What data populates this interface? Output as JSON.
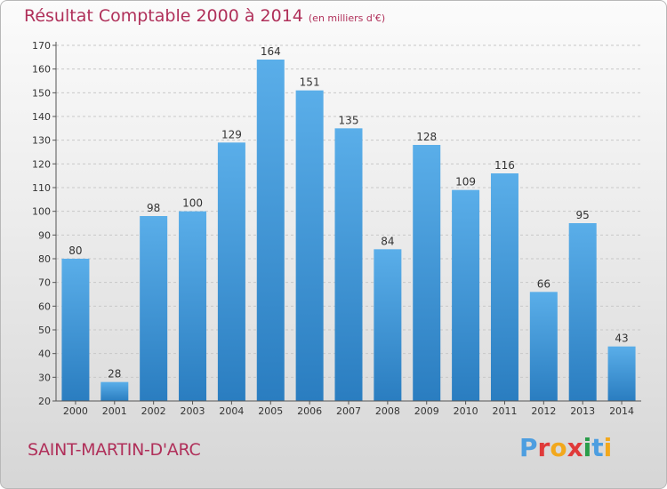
{
  "header": {
    "title": "Résultat Comptable 2000 à 2014",
    "subtitle": "(en milliers d'€)"
  },
  "footer": {
    "commune": "SAINT-MARTIN-D'ARC",
    "logo": "Proxiti"
  },
  "colors": {
    "bar_top": "#5aaee9",
    "bar_bottom": "#2a7dc0",
    "title": "#b0305a",
    "logo_letters": [
      "#4d9ee0",
      "#e03a3a",
      "#f2a81d",
      "#e03a3a",
      "#2a9d4a",
      "#4d9ee0",
      "#f2a81d"
    ]
  },
  "chart_data": {
    "type": "bar",
    "title": "Résultat Comptable 2000 à 2014",
    "subtitle": "(en milliers d'€)",
    "categories": [
      "2000",
      "2001",
      "2002",
      "2003",
      "2004",
      "2005",
      "2006",
      "2007",
      "2008",
      "2009",
      "2010",
      "2011",
      "2012",
      "2013",
      "2014"
    ],
    "values": [
      80,
      28,
      98,
      100,
      129,
      164,
      151,
      135,
      84,
      128,
      109,
      116,
      66,
      95,
      43
    ],
    "ylim": [
      20,
      170
    ],
    "yticks": [
      20,
      30,
      40,
      50,
      60,
      70,
      80,
      90,
      100,
      110,
      120,
      130,
      140,
      150,
      160,
      170
    ],
    "grid": true,
    "xlabel": "",
    "ylabel": ""
  }
}
